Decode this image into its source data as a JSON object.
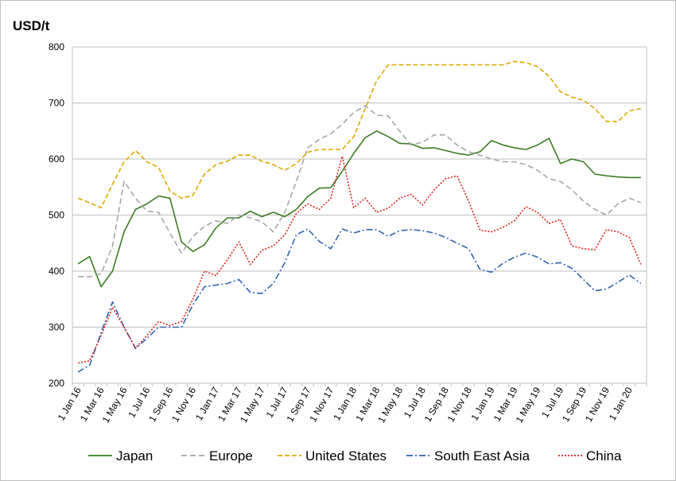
{
  "chart_data": {
    "type": "line",
    "title": "",
    "ylabel": "USD/t",
    "xlabel": "",
    "ylim": [
      200,
      800
    ],
    "yticks": [
      200,
      300,
      400,
      500,
      600,
      700,
      800
    ],
    "grid": "horizontal",
    "legend_position": "bottom",
    "x": [
      "Jan 16",
      "Feb 16",
      "Mar 16",
      "Apr 16",
      "May 16",
      "Jun 16",
      "Jul 16",
      "Aug 16",
      "Sep 16",
      "Oct 16",
      "Nov 16",
      "Dec 16",
      "Jan 17",
      "Feb 17",
      "Mar 17",
      "Apr 17",
      "May 17",
      "Jun 17",
      "Jul 17",
      "Aug 17",
      "Sep 17",
      "Oct 17",
      "Nov 17",
      "Dec 17",
      "Jan 18",
      "Feb 18",
      "Mar 18",
      "Apr 18",
      "May 18",
      "Jun 18",
      "Jul 18",
      "Aug 18",
      "Sep 18",
      "Oct 18",
      "Nov 18",
      "Dec 18",
      "Jan 19",
      "Feb 19",
      "Mar 19",
      "Apr 19",
      "May 19",
      "Jun 19",
      "Jul 19",
      "Aug 19",
      "Sep 19",
      "Oct 19",
      "Nov 19",
      "Dec 19",
      "Jan 20",
      "Feb 20"
    ],
    "xtick_labels": [
      "1 Jan 16",
      "1 Mar 16",
      "1 May 16",
      "1 Jul 16",
      "1 Sep 16",
      "1 Nov 16",
      "1 Jan 17",
      "1 Mar 17",
      "1 May 17",
      "1 Jul 17",
      "1 Sep 17",
      "1 Nov 17",
      "1 Jan 18",
      "1 Mar 18",
      "1 May 18",
      "1 Jul 18",
      "1 Sep 18",
      "1 Nov 18",
      "1 Jan 19",
      "1 Mar 19",
      "1 May 19",
      "1 Jul 19",
      "1 Sep 19",
      "1 Nov 19",
      "1 Jan 20"
    ],
    "series": [
      {
        "name": "Japan",
        "color": "#3a7d22",
        "dash": "solid",
        "values": [
          413,
          426,
          372,
          400,
          470,
          510,
          520,
          534,
          530,
          452,
          435,
          447,
          477,
          495,
          495,
          507,
          497,
          505,
          497,
          510,
          533,
          548,
          549,
          578,
          610,
          638,
          650,
          640,
          628,
          627,
          619,
          620,
          615,
          610,
          607,
          613,
          633,
          625,
          620,
          617,
          625,
          637,
          592,
          600,
          595,
          573,
          570,
          568,
          567,
          567
        ]
      },
      {
        "name": "Europe",
        "color": "#a6a6a6",
        "dash": "dashed",
        "values": [
          390,
          390,
          395,
          445,
          560,
          530,
          507,
          505,
          468,
          432,
          462,
          480,
          490,
          485,
          500,
          495,
          488,
          470,
          505,
          560,
          620,
          635,
          645,
          662,
          683,
          695,
          678,
          677,
          650,
          625,
          630,
          643,
          643,
          625,
          613,
          607,
          600,
          595,
          595,
          590,
          580,
          565,
          560,
          545,
          525,
          510,
          500,
          520,
          530,
          522
        ]
      },
      {
        "name": "United States",
        "color": "#e0a800",
        "dash": "longdash",
        "values": [
          530,
          522,
          513,
          555,
          595,
          615,
          595,
          585,
          543,
          530,
          535,
          573,
          590,
          596,
          607,
          607,
          596,
          590,
          580,
          592,
          612,
          617,
          617,
          617,
          640,
          690,
          740,
          768,
          768,
          768,
          768,
          768,
          768,
          768,
          768,
          768,
          768,
          768,
          774,
          772,
          765,
          748,
          720,
          710,
          705,
          690,
          667,
          667,
          686,
          690
        ]
      },
      {
        "name": "South East Asia",
        "color": "#2e64b5",
        "dash": "dashdot",
        "values": [
          220,
          232,
          290,
          345,
          300,
          262,
          280,
          300,
          300,
          300,
          340,
          372,
          375,
          378,
          385,
          362,
          360,
          378,
          415,
          465,
          475,
          453,
          440,
          475,
          468,
          474,
          474,
          462,
          472,
          474,
          472,
          468,
          460,
          450,
          440,
          403,
          398,
          414,
          425,
          432,
          425,
          413,
          415,
          405,
          385,
          365,
          368,
          380,
          393,
          378
        ]
      },
      {
        "name": "China",
        "color": "#e02020",
        "dash": "dotted",
        "values": [
          236,
          240,
          285,
          335,
          300,
          263,
          285,
          310,
          303,
          310,
          350,
          400,
          392,
          420,
          452,
          412,
          437,
          445,
          465,
          503,
          520,
          510,
          530,
          605,
          513,
          530,
          505,
          512,
          530,
          537,
          518,
          545,
          565,
          570,
          525,
          473,
          470,
          478,
          490,
          515,
          505,
          485,
          492,
          445,
          440,
          438,
          474,
          470,
          460,
          412
        ]
      }
    ]
  }
}
